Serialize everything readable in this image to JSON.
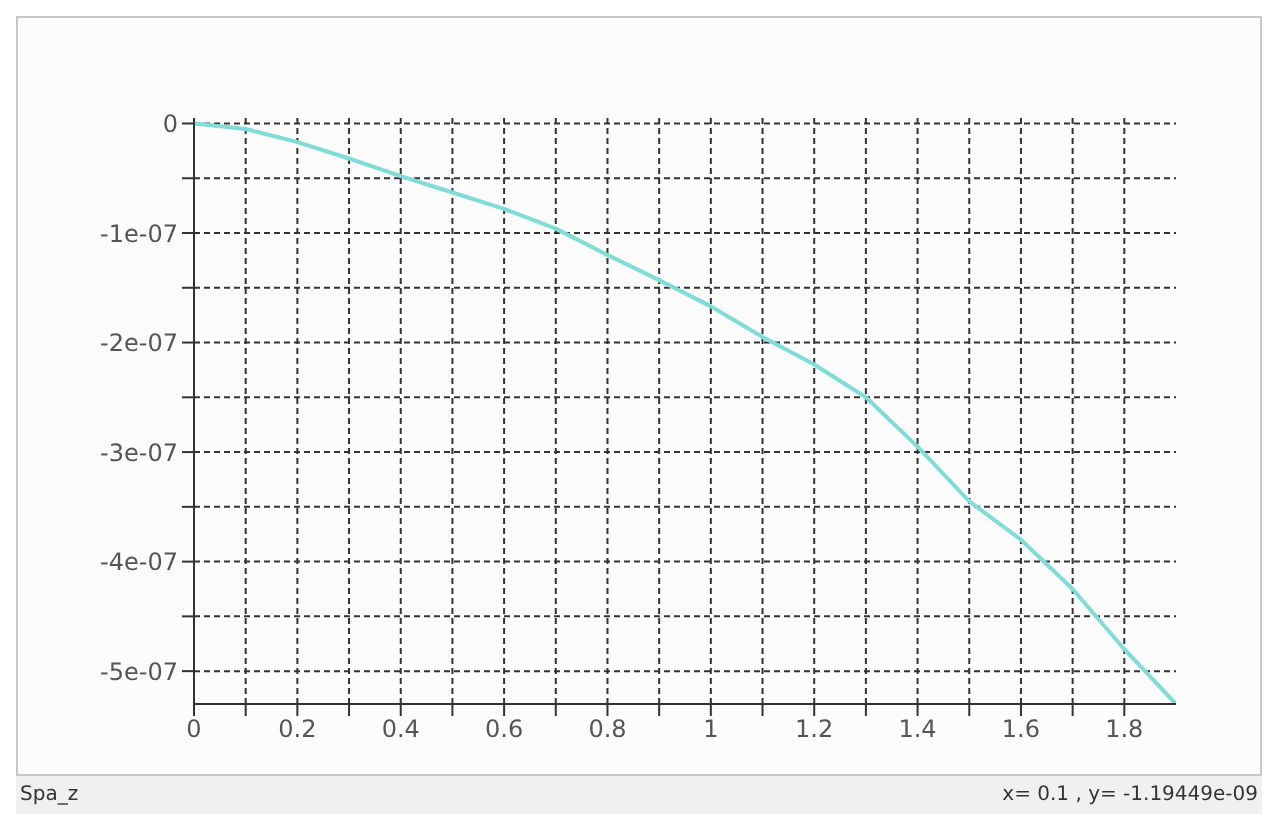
{
  "chart_data": {
    "type": "line",
    "x": [
      0,
      0.1,
      0.2,
      0.3,
      0.4,
      0.5,
      0.6,
      0.7,
      0.8,
      0.9,
      1,
      1.1,
      1.2,
      1.3,
      1.4,
      1.5,
      1.6,
      1.7,
      1.8,
      1.9
    ],
    "series": [
      {
        "color": "#7fdcd6",
        "values": [
          0,
          -5e-09,
          -1.7e-08,
          -3.2e-08,
          -4.8e-08,
          -6.3e-08,
          -7.8e-08,
          -9.6e-08,
          -1.2e-07,
          -1.43e-07,
          -1.67e-07,
          -1.95e-07,
          -2.2e-07,
          -2.5e-07,
          -2.95e-07,
          -3.45e-07,
          -3.8e-07,
          -4.25e-07,
          -4.8e-07,
          -5.3e-07
        ]
      }
    ],
    "xlim": [
      0,
      1.9
    ],
    "xticks": [
      0,
      {
        "value": 0.1,
        "label": null
      },
      0.2,
      {
        "value": 0.3,
        "label": null
      },
      0.4,
      {
        "value": 0.5,
        "label": null
      },
      0.6,
      {
        "value": 0.7,
        "label": null
      },
      0.8,
      {
        "value": 0.9,
        "label": null
      },
      1,
      {
        "value": 1.1,
        "label": null
      },
      1.2,
      {
        "value": 1.3,
        "label": null
      },
      1.4,
      {
        "value": 1.5,
        "label": null
      },
      1.6,
      {
        "value": 1.7,
        "label": null
      },
      1.8
    ],
    "ylim": [
      -5.3e-07,
      5e-09
    ],
    "yticks": [
      0,
      {
        "value": -5e-08,
        "label": null
      },
      {
        "value": -1e-07,
        "label": "-1e-07"
      },
      {
        "value": -1.5e-07,
        "label": null
      },
      {
        "value": -2e-07,
        "label": "-2e-07"
      },
      {
        "value": -2.5e-07,
        "label": null
      },
      {
        "value": -3e-07,
        "label": "-3e-07"
      },
      {
        "value": -3.5e-07,
        "label": null
      },
      {
        "value": -4e-07,
        "label": "-4e-07"
      },
      {
        "value": -4.5e-07,
        "label": null
      },
      {
        "value": -5e-07,
        "label": "-5e-07"
      }
    ],
    "grid": true,
    "marker": "none",
    "line_style": "solid",
    "annotations": [
      "Spa_z",
      "x= 0.1 , y= -1.19449e-09"
    ]
  }
}
